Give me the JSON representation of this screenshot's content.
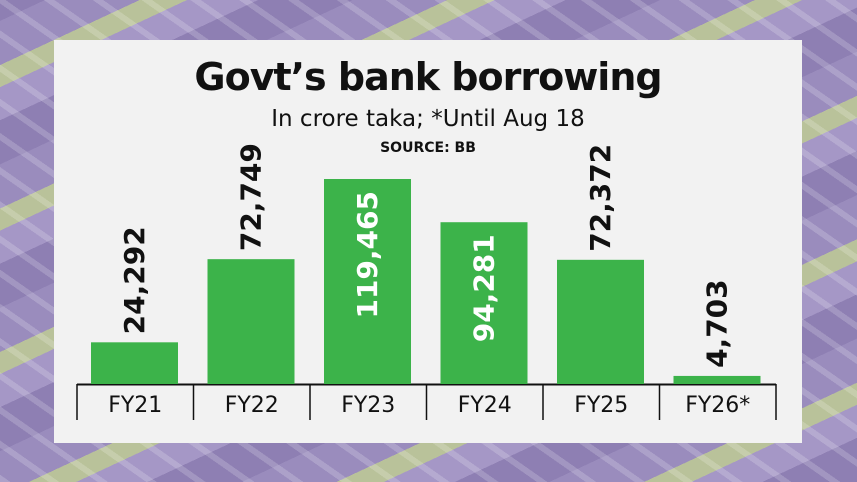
{
  "colors": {
    "bar": "#3cb34a",
    "panel": "#f2f2f2",
    "axis": "#111111",
    "label_inside": "#ffffff",
    "label_outside": "#111111"
  },
  "chart_data": {
    "type": "bar",
    "title": "Govt’s bank borrowing",
    "subtitle": "In crore taka; *Until Aug 18",
    "source_label": "SOURCE:",
    "source_value": "BB",
    "categories": [
      "FY21",
      "FY22",
      "FY23",
      "FY24",
      "FY25",
      "FY26*"
    ],
    "values": [
      24292,
      72749,
      119465,
      94281,
      72372,
      4703
    ],
    "value_labels": [
      "24,292",
      "72,749",
      "119,465",
      "94,281",
      "72,372",
      "4,703"
    ],
    "ylim": [
      0,
      119465
    ],
    "grid": false,
    "legend": "none",
    "data_labels": "rotated, inside tall bars, above short bars"
  }
}
